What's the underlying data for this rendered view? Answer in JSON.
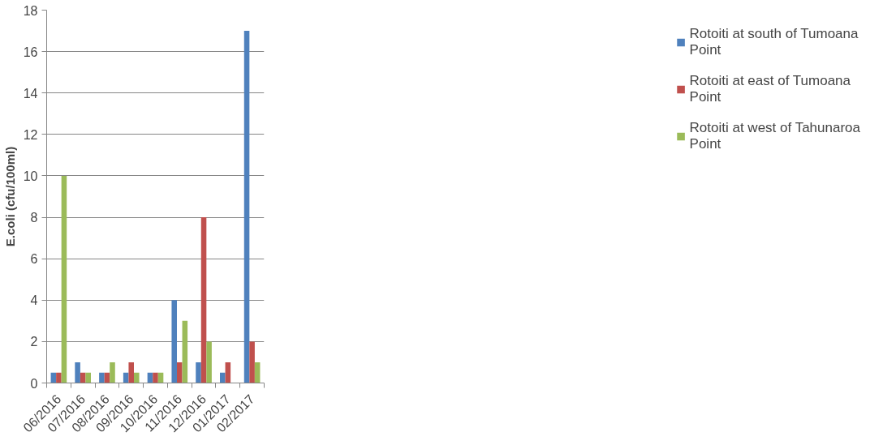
{
  "chart_data": {
    "type": "bar",
    "ylabel": "E.coli (cfu/100ml)",
    "categories": [
      "06/2016",
      "07/2016",
      "08/2016",
      "09/2016",
      "10/2016",
      "11/2016",
      "12/2016",
      "01/2017",
      "02/2017"
    ],
    "series": [
      {
        "name": "Rotoiti at south of Tumoana Point",
        "color": "#4f81bd",
        "values": [
          0.5,
          1,
          0.5,
          0.5,
          0.5,
          4,
          1,
          0.5,
          17
        ]
      },
      {
        "name": "Rotoiti at east of Tumoana Point",
        "color": "#c0504d",
        "values": [
          0.5,
          0.5,
          0.5,
          1,
          0.5,
          1,
          8,
          1,
          2
        ]
      },
      {
        "name": "Rotoiti at west of Tahunaroa Point",
        "color": "#9bbb59",
        "values": [
          10,
          0.5,
          1,
          0.5,
          0.5,
          3,
          2,
          null,
          1
        ]
      }
    ],
    "ylim": [
      0,
      18
    ],
    "yticks": [
      0,
      2,
      4,
      6,
      8,
      10,
      12,
      14,
      16,
      18
    ],
    "grid": "y",
    "legend": "right"
  }
}
